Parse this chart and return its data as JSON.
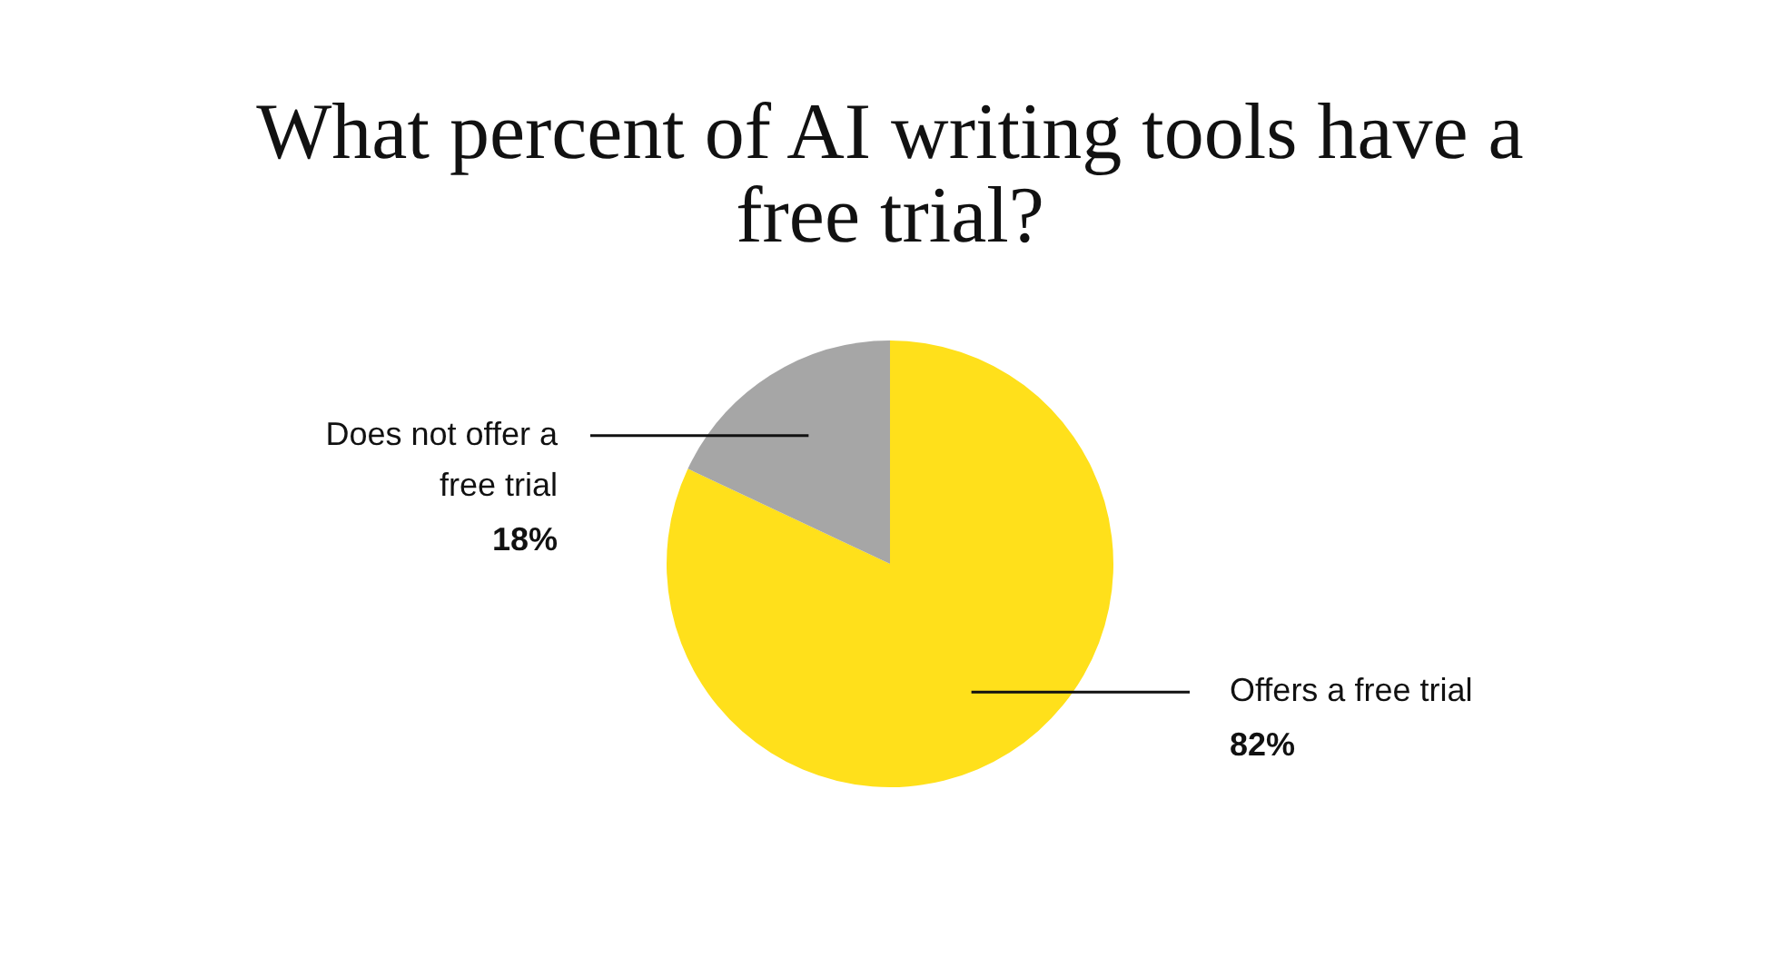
{
  "chart_data": {
    "type": "pie",
    "title": "What percent of AI writing tools have a free trial?",
    "categories": [
      "Offers a free trial",
      "Does not offer a free trial"
    ],
    "values": [
      82,
      18
    ],
    "colors": [
      "#ffe01b",
      "#a6a6a6"
    ],
    "value_labels": [
      "82%",
      "18%"
    ],
    "legend": false
  }
}
